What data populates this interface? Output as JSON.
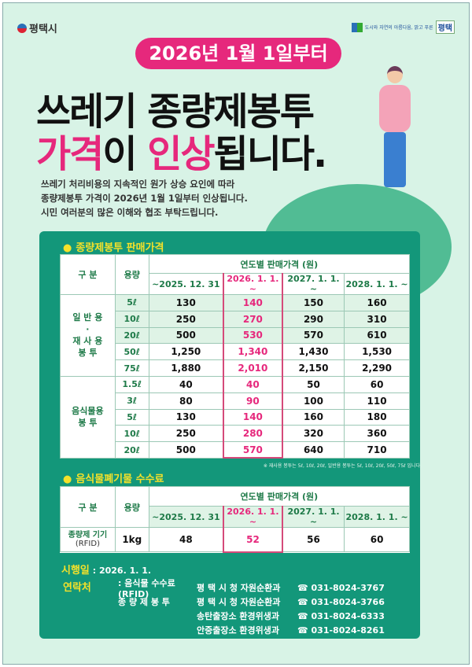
{
  "header": {
    "logo": "평택시",
    "slogan": "도시와 자연의 아름다움, 밝고 푸른",
    "slogan_city": "평택"
  },
  "banner": "2026년 1월 1일부터",
  "title": {
    "line1": "쓰레기 종량제봉투",
    "line2_a": "가격",
    "line2_b": "이 ",
    "line2_c": "인상",
    "line2_d": "됩니다."
  },
  "intro": [
    "쓰레기 처리비용의 지속적인 원가 상승 요인에 따라",
    "종량제봉투 가격이 2026년 1월 1일부터 인상됩니다.",
    "시민 여러분의 많은 이해와 협조 부탁드립니다."
  ],
  "section1": {
    "title": "종량제봉투 판매가격",
    "h_category": "구 분",
    "h_volume": "용량",
    "h_group": "연도별 판매가격 (원)",
    "periods": [
      "~2025. 12. 31",
      "2026. 1. 1. ~",
      "2027. 1. 1. ~",
      "2028. 1. 1. ~"
    ],
    "group1": [
      "일 반 용",
      "·",
      "재 사 용",
      "봉  투"
    ],
    "group2": [
      "음식물용",
      "봉  투"
    ],
    "rows1": [
      [
        "5ℓ",
        "130",
        "140",
        "150",
        "160"
      ],
      [
        "10ℓ",
        "250",
        "270",
        "290",
        "310"
      ],
      [
        "20ℓ",
        "500",
        "530",
        "570",
        "610"
      ],
      [
        "50ℓ",
        "1,250",
        "1,340",
        "1,430",
        "1,530"
      ],
      [
        "75ℓ",
        "1,880",
        "2,010",
        "2,150",
        "2,290"
      ]
    ],
    "rows2": [
      [
        "1.5ℓ",
        "40",
        "40",
        "50",
        "60"
      ],
      [
        "3ℓ",
        "80",
        "90",
        "100",
        "110"
      ],
      [
        "5ℓ",
        "130",
        "140",
        "160",
        "180"
      ],
      [
        "10ℓ",
        "250",
        "280",
        "320",
        "360"
      ],
      [
        "20ℓ",
        "500",
        "570",
        "640",
        "710"
      ]
    ],
    "note": "※ 재사용 봉투는 5ℓ, 10ℓ, 20ℓ, 일반용 봉투는 5ℓ, 10ℓ, 20ℓ, 50ℓ, 75ℓ 입니다."
  },
  "section2": {
    "title": "음식물폐기물 수수료",
    "h_category": "구 분",
    "h_volume": "용량",
    "h_group": "연도별 판매가격 (원)",
    "periods": [
      "~2025. 12. 31",
      "2026. 1. 1. ~",
      "2027. 1. 1. ~",
      "2028. 1. 1. ~"
    ],
    "row": {
      "label": "종량제 기기",
      "sub": "(RFID)",
      "vol": "1kg",
      "values": [
        "48",
        "52",
        "56",
        "60"
      ]
    }
  },
  "effective": {
    "label": "시행일",
    "value": ": 2026. 1. 1."
  },
  "contact": {
    "label": "연락처",
    "items": [
      {
        "a": ": 음식물 수수료(RFID)",
        "b": "평 택 시 청 자원순환과",
        "c": "☎ 031-8024-3767"
      },
      {
        "a": "종 량 제 봉 투",
        "b": "평 택 시 청 자원순환과",
        "c": "☎ 031-8024-3766"
      },
      {
        "a": "",
        "b": "송탄출장소 환경위생과",
        "c": "☎ 031-8024-6333"
      },
      {
        "a": "",
        "b": "안중출장소 환경위생과",
        "c": "☎ 031-8024-8261"
      }
    ]
  },
  "colors": {
    "bg": "#d8f3e6",
    "panel": "#13977a",
    "accent": "#e6287c",
    "section": "#f4e12a"
  }
}
